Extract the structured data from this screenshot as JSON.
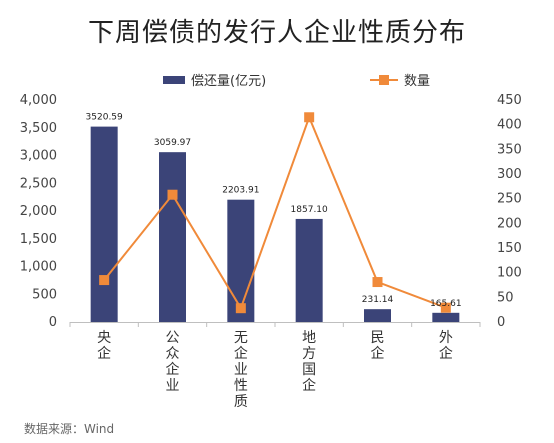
{
  "title": "下周偿债的发行人企业性质分布",
  "source": "数据来源：Wind",
  "chart_data": {
    "type": "bar+line",
    "categories": [
      "央企",
      "公众企业",
      "无企业性质",
      "地方国企",
      "民企",
      "外企"
    ],
    "series": [
      {
        "name": "偿还量(亿元)",
        "type": "bar",
        "axis": "left",
        "color": "#3b4478",
        "values": [
          3520.59,
          3059.97,
          2203.91,
          1857.1,
          231.14,
          165.61
        ],
        "labels": [
          "3520.59",
          "3059.97",
          "2203.91",
          "1857.10",
          "231.14",
          "165.61"
        ]
      },
      {
        "name": "数量",
        "type": "line",
        "axis": "right",
        "color": "#f08a3a",
        "values": [
          85,
          258,
          28,
          415,
          81,
          29
        ]
      }
    ],
    "y_left": {
      "min": 0,
      "max": 4000,
      "ticks": [
        "0",
        "500",
        "1,000",
        "1,500",
        "2,000",
        "2,500",
        "3,000",
        "3,500",
        "4,000"
      ]
    },
    "y_right": {
      "min": 0,
      "max": 450,
      "ticks": [
        "0",
        "50",
        "100",
        "150",
        "200",
        "250",
        "300",
        "350",
        "400",
        "450"
      ]
    },
    "grid": false,
    "legend": "top"
  }
}
